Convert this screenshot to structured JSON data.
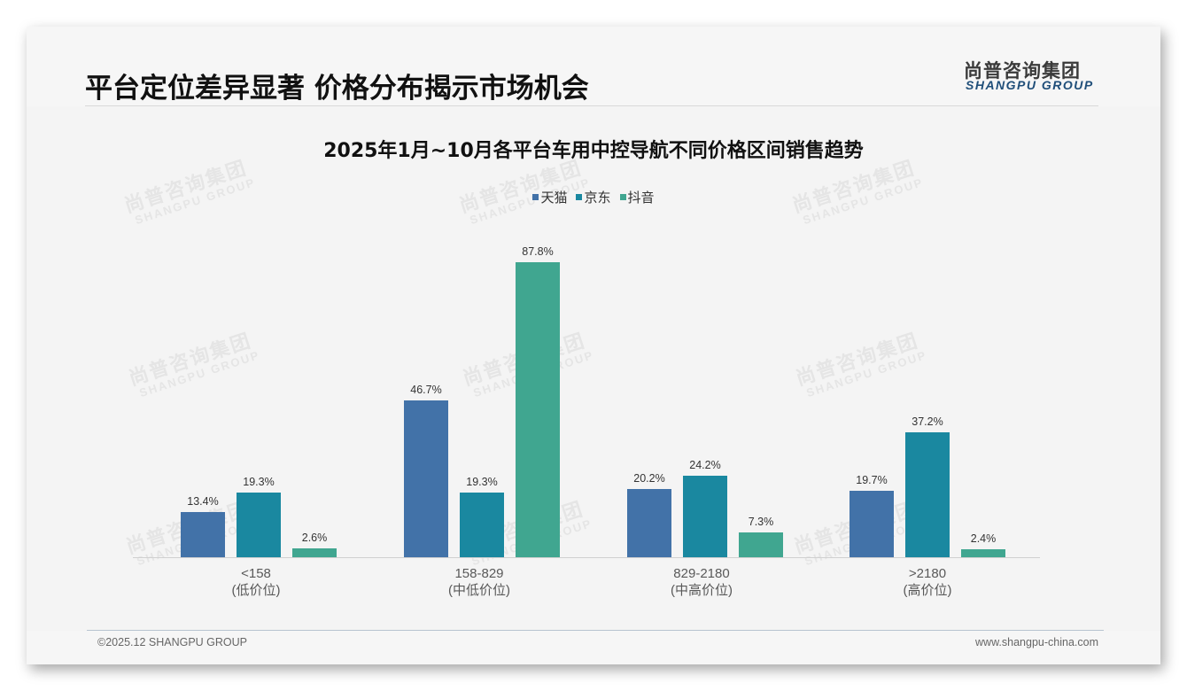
{
  "header": {
    "title": "平台定位差异显著 价格分布揭示市场机会",
    "logo_cn": "尚普咨询集团",
    "logo_en": "SHANGPU GROUP"
  },
  "watermark": {
    "cn": "尚普咨询集团",
    "en": "SHANGPU GROUP"
  },
  "footer": {
    "copyright": "©2025.12 SHANGPU GROUP",
    "website": "www.shangpu-china.com"
  },
  "colors": {
    "tmall": "#4272a8",
    "jd": "#1a88a0",
    "douyin": "#40a690",
    "background": "#f4f4f4"
  },
  "legend": [
    {
      "label": "天猫",
      "color": "#4272a8"
    },
    {
      "label": "京东",
      "color": "#1a88a0"
    },
    {
      "label": "抖音",
      "color": "#40a690"
    }
  ],
  "categories_display": [
    {
      "range": "<158",
      "tier": "(低价位)"
    },
    {
      "range": "158-829",
      "tier": "(中低价位)"
    },
    {
      "range": "829-2180",
      "tier": "(中高价位)"
    },
    {
      "range": ">2180",
      "tier": "(高价位)"
    }
  ],
  "labels": {
    "s0": [
      "13.4%",
      "46.7%",
      "20.2%",
      "19.7%"
    ],
    "s1": [
      "19.3%",
      "19.3%",
      "24.2%",
      "37.2%"
    ],
    "s2": [
      "2.6%",
      "87.8%",
      "7.3%",
      "2.4%"
    ]
  },
  "chart_data": {
    "type": "bar",
    "title": "2025年1月~10月各平台车用中控导航不同价格区间销售趋势",
    "categories": [
      "<158 (低价位)",
      "158-829 (中低价位)",
      "829-2180 (中高价位)",
      ">2180 (高价位)"
    ],
    "series": [
      {
        "name": "天猫",
        "values": [
          13.4,
          46.7,
          20.2,
          19.7
        ],
        "color": "#4272a8"
      },
      {
        "name": "京东",
        "values": [
          19.3,
          19.3,
          24.2,
          37.2
        ],
        "color": "#1a88a0"
      },
      {
        "name": "抖音",
        "values": [
          2.6,
          87.8,
          7.3,
          2.4
        ],
        "color": "#40a690"
      }
    ],
    "xlabel": "",
    "ylabel": "",
    "ylim": [
      0,
      100
    ],
    "unit": "%",
    "grid": false,
    "data_labels": true,
    "legend_position": "top"
  }
}
